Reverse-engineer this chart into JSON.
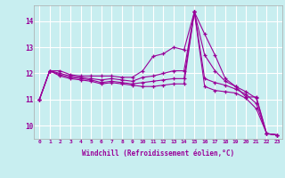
{
  "xlabel": "Windchill (Refroidissement éolien,°C)",
  "background_color": "#c8eef0",
  "line_color": "#990099",
  "grid_color": "#ffffff",
  "xlim": [
    -0.5,
    23.5
  ],
  "ylim": [
    9.5,
    14.6
  ],
  "yticks": [
    10,
    11,
    12,
    13,
    14
  ],
  "xticks": [
    0,
    1,
    2,
    3,
    4,
    5,
    6,
    7,
    8,
    9,
    10,
    11,
    12,
    13,
    14,
    15,
    16,
    17,
    18,
    19,
    20,
    21,
    22,
    23
  ],
  "line1_x": [
    0,
    1,
    2,
    3,
    4,
    5,
    6,
    7,
    8,
    9,
    10,
    11,
    12,
    13,
    14,
    15,
    16,
    17,
    18,
    19,
    20,
    21,
    22,
    23
  ],
  "line1_y": [
    11.0,
    12.1,
    12.1,
    11.95,
    11.9,
    11.9,
    11.9,
    11.9,
    11.85,
    11.85,
    12.1,
    12.65,
    12.75,
    13.0,
    12.9,
    14.35,
    13.5,
    12.7,
    11.8,
    11.5,
    11.1,
    11.1,
    9.7,
    9.65
  ],
  "line2_x": [
    0,
    1,
    2,
    3,
    4,
    5,
    6,
    7,
    8,
    9,
    10,
    11,
    12,
    13,
    14,
    15,
    16,
    17,
    18,
    19,
    20,
    21,
    22,
    23
  ],
  "line2_y": [
    11.0,
    12.1,
    12.0,
    11.9,
    11.85,
    11.8,
    11.75,
    11.8,
    11.75,
    11.7,
    11.85,
    11.9,
    12.0,
    12.1,
    12.1,
    14.35,
    12.7,
    12.1,
    11.7,
    11.5,
    11.3,
    11.05,
    9.7,
    9.65
  ],
  "line3_x": [
    0,
    1,
    2,
    3,
    4,
    5,
    6,
    7,
    8,
    9,
    10,
    11,
    12,
    13,
    14,
    15,
    16,
    17,
    18,
    19,
    20,
    21,
    22,
    23
  ],
  "line3_y": [
    11.0,
    12.1,
    11.95,
    11.85,
    11.8,
    11.75,
    11.65,
    11.7,
    11.65,
    11.6,
    11.65,
    11.7,
    11.75,
    11.8,
    11.8,
    14.35,
    11.8,
    11.65,
    11.55,
    11.4,
    11.2,
    10.85,
    9.7,
    9.65
  ],
  "line4_x": [
    0,
    1,
    2,
    3,
    4,
    5,
    6,
    7,
    8,
    9,
    10,
    11,
    12,
    13,
    14,
    15,
    16,
    17,
    18,
    19,
    20,
    21,
    22,
    23
  ],
  "line4_y": [
    11.0,
    12.1,
    11.9,
    11.8,
    11.75,
    11.7,
    11.6,
    11.65,
    11.6,
    11.55,
    11.5,
    11.5,
    11.55,
    11.6,
    11.6,
    14.35,
    11.5,
    11.35,
    11.3,
    11.25,
    11.05,
    10.65,
    9.7,
    9.65
  ]
}
